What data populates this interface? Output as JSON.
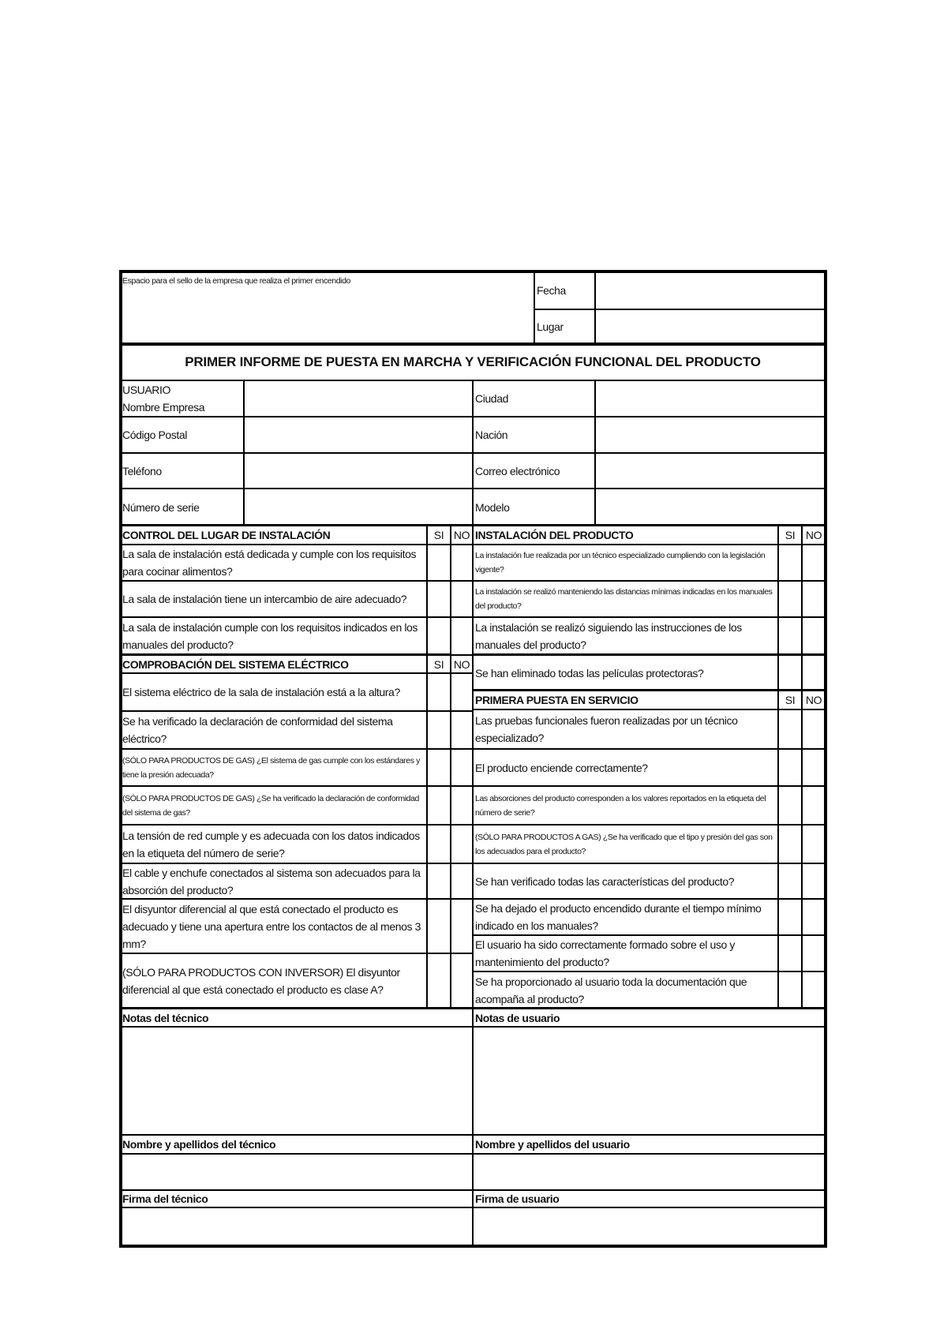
{
  "header": {
    "stamp_label": "Espacio para el sello de la empresa que realiza el primer encendido",
    "date_label": "Fecha",
    "place_label": "Lugar",
    "title": "PRIMER INFORME DE PUESTA EN MARCHA Y VERIFICACIÓN FUNCIONAL DEL PRODUCTO"
  },
  "user_fields": {
    "left": [
      "USUARIO\nNombre Empresa",
      "Código Postal",
      "Teléfono",
      "Número de serie"
    ],
    "right": [
      "Ciudad",
      "Nación",
      "Correo electrónico",
      "Modelo"
    ]
  },
  "yes_label": "SI",
  "no_label": "NO",
  "sections": {
    "site": {
      "title": "CONTROL DEL LUGAR DE INSTALACIÓN",
      "items": [
        "La sala de instalación está dedicada y cumple con los requisitos para cocinar alimentos?",
        "La sala de instalación tiene un intercambio de aire adecuado?",
        "La sala de instalación cumple con los requisitos indicados en los manuales del producto?"
      ]
    },
    "electric": {
      "title": "COMPROBACIÓN DEL SISTEMA ELÉCTRICO",
      "items": [
        "El sistema eléctrico de la sala de instalación está a la altura?",
        "Se ha verificado la declaración de conformidad del sistema eléctrico?",
        "(SÓLO PARA PRODUCTOS DE GAS) ¿El sistema de gas cumple con los estándares y tiene la presión adecuada?",
        "(SÓLO PARA PRODUCTOS DE GAS) ¿Se ha verificado la declaración de conformidad del sistema de gas?",
        "La tensión de red cumple y es adecuada con los datos indicados en la etiqueta del número de serie?",
        "El cable y enchufe conectados al sistema son adecuados para la absorción del producto?",
        "El disyuntor diferencial al que está conectado el producto es adecuado y tiene una apertura entre los contactos de al menos 3 mm?",
        "(SÓLO PARA PRODUCTOS CON INVERSOR) El disyuntor diferencial al que está conectado el producto es clase A?"
      ]
    },
    "install": {
      "title": "INSTALACIÓN DEL PRODUCTO",
      "items": [
        "La instalación fue realizada por un técnico especializado cumpliendo con la legislación vigente?",
        "La instalación se realizó manteniendo las distancias mínimas indicadas en los manuales del producto?",
        "La instalación se realizó siguiendo las instrucciones de los manuales del producto?",
        "Se han eliminado todas las películas protectoras?"
      ]
    },
    "first_service": {
      "title": "PRIMERA PUESTA EN SERVICIO",
      "items": [
        "Las pruebas funcionales fueron realizadas por un técnico especializado?",
        "El producto enciende correctamente?",
        "Las absorciones del producto corresponden a los valores reportados en la etiqueta del número de serie?",
        "(SÓLO PARA PRODUCTOS A GAS) ¿Se ha verificado que el tipo y presión del gas son los adecuados para el producto?",
        "Se han verificado todas las características del producto?",
        "Se ha dejado el producto encendido durante el tiempo mínimo indicado en los manuales?",
        "El usuario ha sido correctamente formado sobre el uso y mantenimiento del producto?",
        "Se ha proporcionado al usuario toda la documentación que acompaña al producto?"
      ]
    }
  },
  "footer": {
    "tech_notes": "Notas del técnico",
    "user_notes": "Notas de usuario",
    "tech_name": "Nombre y apellidos del técnico",
    "user_name": "Nombre y apellidos del usuario",
    "tech_signature": "Firma del técnico",
    "user_signature": "Firma de usuario"
  }
}
